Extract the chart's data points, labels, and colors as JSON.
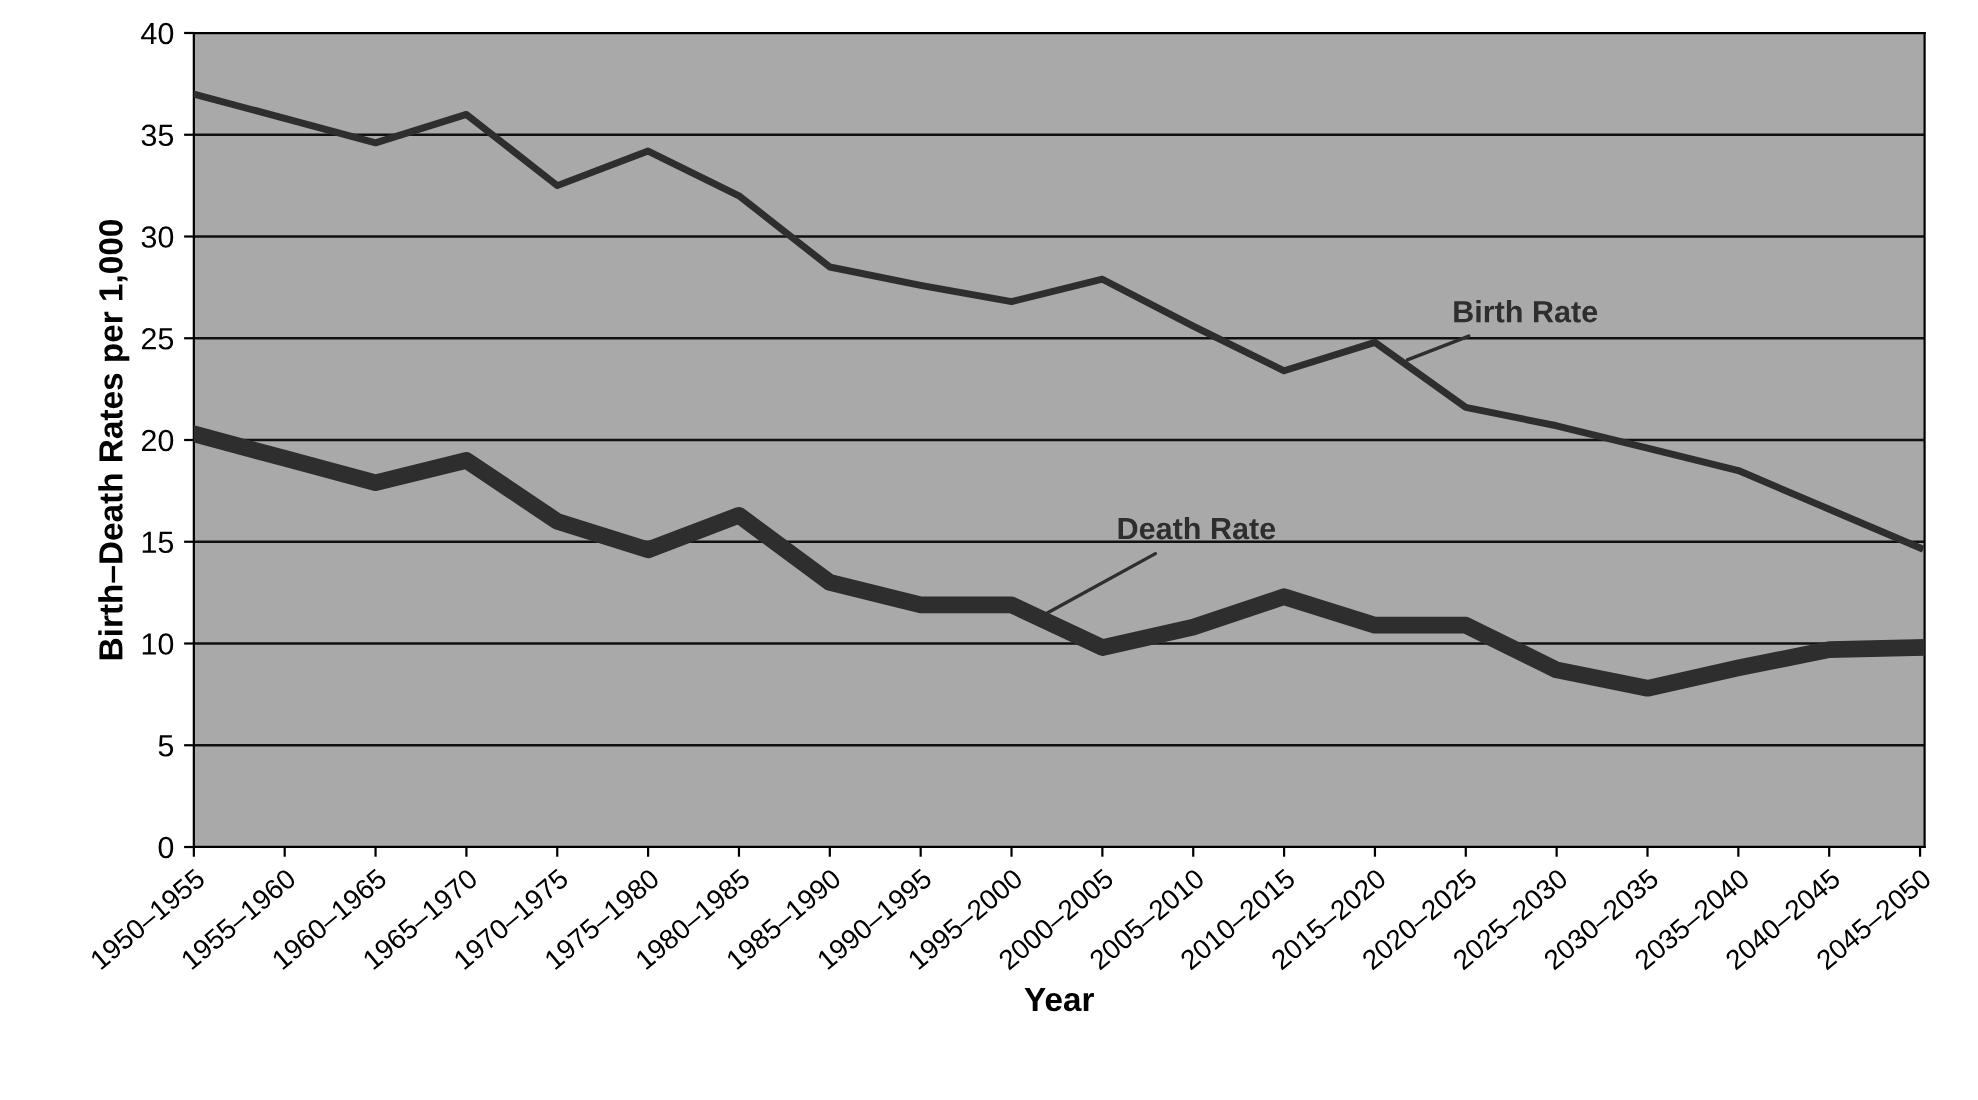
{
  "chart_data": {
    "type": "line",
    "xlabel": "Year",
    "ylabel": "Birth–Death Rates per 1,000",
    "categories": [
      "1950–1955",
      "1955–1960",
      "1960–1965",
      "1965–1970",
      "1970–1975",
      "1975–1980",
      "1980–1985",
      "1985–1990",
      "1990–1995",
      "1995–2000",
      "2000–2005",
      "2005–2010",
      "2010–2015",
      "2015–2020",
      "2020–2025",
      "2025–2030",
      "2030–2035",
      "2035–2040",
      "2040–2045",
      "2045–2050"
    ],
    "series": [
      {
        "name": "Birth Rate",
        "color": "#2e2e2e",
        "values": [
          37,
          35.8,
          34.6,
          36,
          32.5,
          34.2,
          32,
          28.5,
          27.6,
          26.8,
          27.9,
          25.6,
          23.4,
          24.8,
          21.6,
          20.7,
          19.6,
          18.5,
          16.6,
          14.7
        ]
      },
      {
        "name": "Death Rate",
        "color": "#2e2e2e",
        "values": [
          20.3,
          19.1,
          17.9,
          19,
          16,
          14.6,
          16.3,
          13,
          11.9,
          11.9,
          9.8,
          10.8,
          12.3,
          10.9,
          10.9,
          8.7,
          7.8,
          8.8,
          9.7,
          9.8
        ]
      }
    ],
    "ylim": [
      0,
      40
    ],
    "yticks": [
      0,
      5,
      10,
      15,
      20,
      25,
      30,
      35,
      40
    ],
    "grid": "y",
    "legend": false
  }
}
